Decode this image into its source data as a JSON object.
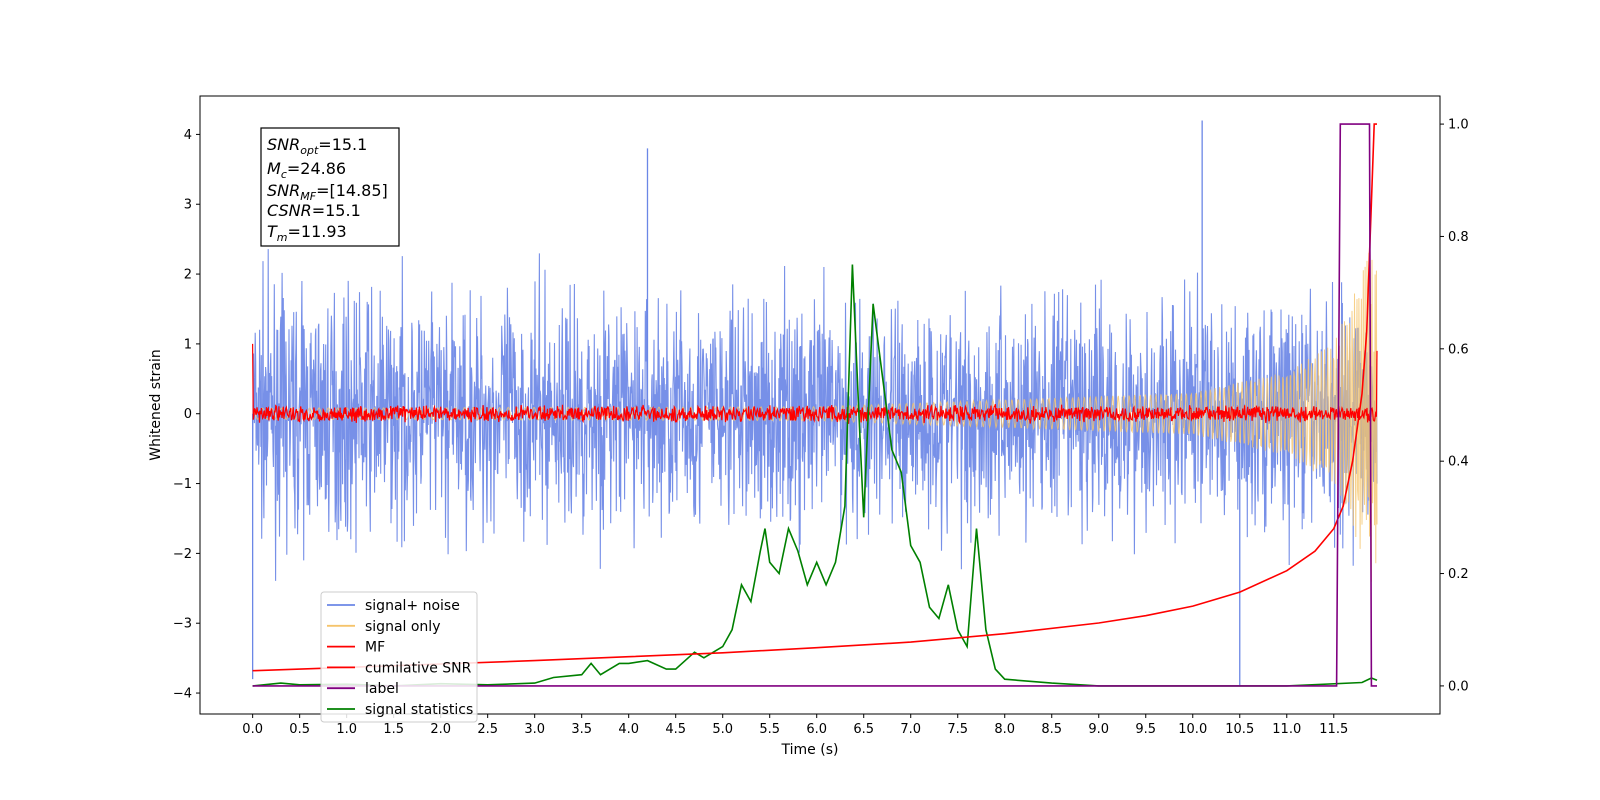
{
  "chart_data": {
    "type": "line",
    "xlabel": "Time (s)",
    "ylabel": "Whitened strain",
    "xlim": [
      -0.56,
      12.63
    ],
    "ylim_left": [
      -4.3,
      4.55
    ],
    "ylim_right": [
      -0.05,
      1.05
    ],
    "x_ticks": [
      "0.0",
      "0.5",
      "1.0",
      "1.5",
      "2.0",
      "2.5",
      "3.0",
      "3.5",
      "4.0",
      "4.5",
      "5.0",
      "5.5",
      "6.0",
      "6.5",
      "7.0",
      "7.5",
      "8.0",
      "8.5",
      "9.0",
      "9.5",
      "10.0",
      "10.5",
      "11.0",
      "11.5"
    ],
    "y_left_ticks": [
      "−4",
      "−3",
      "−2",
      "−1",
      "0",
      "1",
      "2",
      "3",
      "4"
    ],
    "y_right_ticks": [
      "0.0",
      "0.2",
      "0.4",
      "0.6",
      "0.8",
      "1.0"
    ],
    "grid": false,
    "legend_position": "lower-left",
    "annotation": {
      "snr_opt": {
        "base": "SNR",
        "sub": "opt",
        "value": "=15.1"
      },
      "mc": {
        "base": "M",
        "sub": "c",
        "value": "=24.86"
      },
      "snr_mf": {
        "base": "SNR",
        "sub": "MF",
        "value": "=[14.85]"
      },
      "csnr": {
        "base": "CSNR",
        "value": "=15.1"
      },
      "tm": {
        "base": "T",
        "sub": "m",
        "value": "=11.93"
      }
    },
    "series": [
      {
        "name": "signal+ noise",
        "color": "#6b87e6",
        "axis": "left",
        "x_range": [
          0.0,
          11.96
        ],
        "amplitude_range": [
          -2.6,
          2.6
        ],
        "peak_values": [
          {
            "x": 4.2,
            "y": 3.8
          },
          {
            "x": 10.1,
            "y": 4.2
          },
          {
            "x": 0.0,
            "y": -3.8
          },
          {
            "x": 10.5,
            "y": -3.9
          }
        ]
      },
      {
        "name": "signal only",
        "color": "#f5c46b",
        "axis": "left",
        "envelope": [
          [
            0.0,
            0.08
          ],
          [
            6.0,
            0.1
          ],
          [
            10.0,
            0.3
          ],
          [
            11.0,
            0.6
          ],
          [
            11.5,
            1.0
          ],
          [
            11.8,
            2.0
          ],
          [
            11.96,
            2.7
          ]
        ]
      },
      {
        "name": "MF",
        "color": "#ff0000",
        "axis": "left",
        "x_range": [
          0.0,
          11.96
        ],
        "noise_band": [
          -0.1,
          0.1
        ],
        "edge_values": [
          {
            "x": 0.0,
            "y": 1.0
          },
          {
            "x": 11.96,
            "y": 0.9
          }
        ]
      },
      {
        "name": "cumilative SNR",
        "color": "#ff0000",
        "axis": "right",
        "x": [
          0.0,
          1.0,
          2.0,
          3.0,
          4.0,
          5.0,
          6.0,
          7.0,
          8.0,
          9.0,
          9.5,
          10.0,
          10.5,
          11.0,
          11.3,
          11.5,
          11.6,
          11.7,
          11.8,
          11.85,
          11.9,
          11.93,
          11.96
        ],
        "values": [
          0.027,
          0.033,
          0.039,
          0.045,
          0.052,
          0.059,
          0.068,
          0.078,
          0.093,
          0.112,
          0.125,
          0.142,
          0.167,
          0.205,
          0.24,
          0.28,
          0.32,
          0.4,
          0.52,
          0.63,
          0.86,
          1.0,
          1.0
        ]
      },
      {
        "name": "label",
        "color": "#800080",
        "axis": "right",
        "x": [
          0.0,
          11.53,
          11.57,
          11.88,
          11.9,
          11.96
        ],
        "values": [
          0.0,
          0.0,
          1.0,
          1.0,
          0.0,
          0.0
        ]
      },
      {
        "name": "signal statistics",
        "color": "#008000",
        "axis": "right",
        "x": [
          0.0,
          0.3,
          0.5,
          1.0,
          1.5,
          2.0,
          2.5,
          3.0,
          3.2,
          3.5,
          3.6,
          3.7,
          3.9,
          4.0,
          4.2,
          4.4,
          4.5,
          4.7,
          4.8,
          5.0,
          5.1,
          5.2,
          5.3,
          5.4,
          5.45,
          5.5,
          5.6,
          5.7,
          5.8,
          5.9,
          6.0,
          6.1,
          6.2,
          6.3,
          6.38,
          6.45,
          6.5,
          6.6,
          6.7,
          6.8,
          6.9,
          7.0,
          7.1,
          7.2,
          7.3,
          7.4,
          7.5,
          7.6,
          7.7,
          7.8,
          7.9,
          8.0,
          8.5,
          9.0,
          11.0,
          11.8,
          11.9,
          11.96
        ],
        "values": [
          0.0,
          0.005,
          0.002,
          0.003,
          0.0,
          0.004,
          0.002,
          0.005,
          0.015,
          0.02,
          0.04,
          0.02,
          0.04,
          0.04,
          0.045,
          0.03,
          0.03,
          0.06,
          0.05,
          0.07,
          0.1,
          0.18,
          0.15,
          0.24,
          0.28,
          0.22,
          0.2,
          0.28,
          0.24,
          0.18,
          0.22,
          0.18,
          0.22,
          0.32,
          0.75,
          0.48,
          0.3,
          0.68,
          0.55,
          0.42,
          0.38,
          0.25,
          0.22,
          0.14,
          0.12,
          0.18,
          0.1,
          0.07,
          0.28,
          0.1,
          0.03,
          0.012,
          0.005,
          0.0,
          0.0,
          0.006,
          0.014,
          0.01
        ]
      }
    ]
  }
}
